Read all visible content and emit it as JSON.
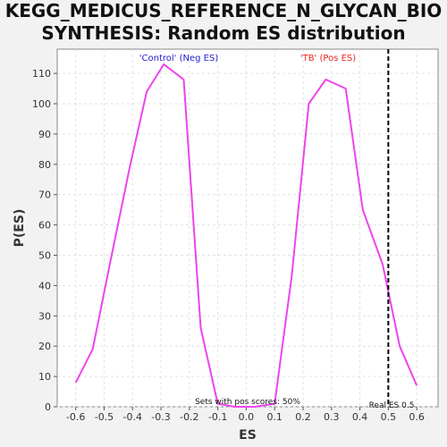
{
  "chart_data": {
    "type": "line",
    "title_lines": [
      "KEGG_MEDICUS_REFERENCE_N_GLYCAN_BIO",
      "SYNTHESIS: Random ES distribution"
    ],
    "xlabel": "ES",
    "ylabel": "P(ES)",
    "xlim": [
      -0.665,
      0.675
    ],
    "ylim": [
      0,
      118
    ],
    "xticks": [
      -0.6,
      -0.5,
      -0.4,
      -0.3,
      -0.2,
      -0.1,
      0.0,
      0.1,
      0.2,
      0.3,
      0.4,
      0.5,
      0.6
    ],
    "xtick_labels": [
      "-0.6",
      "-0.5",
      "-0.4",
      "-0.3",
      "-0.2",
      "-0.1",
      "0.0",
      "0.1",
      "0.2",
      "0.3",
      "0.4",
      "0.5",
      "0.6"
    ],
    "yticks": [
      0,
      10,
      20,
      30,
      40,
      50,
      60,
      70,
      80,
      90,
      100,
      110
    ],
    "ytick_labels": [
      "0",
      "10",
      "20",
      "30",
      "40",
      "50",
      "60",
      "70",
      "80",
      "90",
      "100",
      "110"
    ],
    "grid": true,
    "series": [
      {
        "color": "#ee44ee",
        "x": [
          -0.6,
          -0.54,
          -0.48,
          -0.41,
          -0.35,
          -0.29,
          -0.22,
          -0.16,
          -0.1,
          -0.04,
          0.03,
          0.1,
          0.16,
          0.22,
          0.28,
          0.35,
          0.41,
          0.48,
          0.54,
          0.6
        ],
        "y": [
          8,
          19,
          47,
          79,
          104,
          113,
          108,
          26,
          1,
          0,
          0,
          1,
          43,
          100,
          108,
          105,
          65,
          47,
          20,
          7
        ]
      }
    ],
    "real_es_line": {
      "x": 0.5,
      "color": "#000000",
      "style": "dashed"
    },
    "annotations": {
      "neg_label": "'Control' (Neg ES)",
      "neg_color": "#2222cc",
      "pos_label": "'TB' (Pos ES)",
      "pos_color": "#ee2222",
      "pos_scores_text": "Sets with pos scores: 50%",
      "real_es_text": "Real ES 0.5"
    }
  }
}
